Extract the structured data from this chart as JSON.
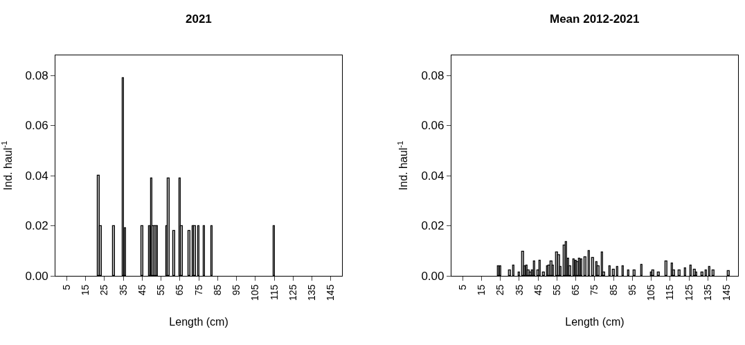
{
  "chart_data": [
    {
      "type": "bar",
      "title": "2021",
      "xlabel": "Length (cm)",
      "ylabel": "Ind. haul$^{-1}$",
      "color": "#a8a8a8",
      "x": [
        22,
        23,
        30,
        35,
        36,
        45,
        49,
        50,
        51,
        52,
        53,
        58,
        59,
        62,
        65,
        66,
        70,
        72,
        73,
        75,
        78,
        82,
        115
      ],
      "values": [
        0.04,
        0.02,
        0.02,
        0.079,
        0.019,
        0.02,
        0.02,
        0.039,
        0.02,
        0.02,
        0.02,
        0.02,
        0.039,
        0.018,
        0.039,
        0.02,
        0.018,
        0.02,
        0.02,
        0.02,
        0.02,
        0.02,
        0.02
      ],
      "xlim": [
        -1,
        151
      ],
      "xticks": [
        5,
        15,
        25,
        35,
        45,
        55,
        65,
        75,
        85,
        95,
        105,
        115,
        125,
        135,
        145
      ],
      "ylim": [
        0,
        0.088
      ],
      "yticks": [
        {
          "value": 0,
          "label": "0.00"
        },
        {
          "value": 0.02,
          "label": "0.02"
        },
        {
          "value": 0.04,
          "label": "0.04"
        },
        {
          "value": 0.06,
          "label": "0.06"
        },
        {
          "value": 0.08,
          "label": "0.08"
        }
      ]
    },
    {
      "type": "bar",
      "title": "Mean 2012-2021",
      "xlabel": "Length (cm)",
      "ylabel": "Ind. haul$^{-1}$",
      "color": "#a8a8a8",
      "x": [
        24,
        25,
        30,
        32,
        35,
        37,
        38,
        39,
        40,
        41,
        42,
        43,
        45,
        46,
        48,
        50,
        51,
        52,
        53,
        55,
        56,
        57,
        59,
        60,
        61,
        62,
        64,
        65,
        66,
        67,
        68,
        70,
        72,
        74,
        76,
        77,
        79,
        80,
        83,
        85,
        87,
        90,
        93,
        96,
        100,
        105,
        106,
        109,
        113,
        116,
        117,
        120,
        123,
        126,
        128,
        129,
        132,
        134,
        136,
        138,
        146
      ],
      "values": [
        0.0039,
        0.0039,
        0.0022,
        0.0041,
        0.0015,
        0.0097,
        0.0039,
        0.0041,
        0.0022,
        0.0015,
        0.0022,
        0.0057,
        0.0022,
        0.0062,
        0.0015,
        0.0039,
        0.0042,
        0.0057,
        0.0041,
        0.0093,
        0.0083,
        0.0036,
        0.0122,
        0.0134,
        0.007,
        0.004,
        0.0066,
        0.0062,
        0.0054,
        0.007,
        0.0066,
        0.0075,
        0.01,
        0.0073,
        0.0054,
        0.004,
        0.0093,
        0.0015,
        0.0039,
        0.0024,
        0.0036,
        0.004,
        0.0022,
        0.0022,
        0.0044,
        0.0015,
        0.0022,
        0.0015,
        0.0057,
        0.0049,
        0.0022,
        0.0022,
        0.0031,
        0.0041,
        0.0026,
        0.0015,
        0.0015,
        0.0022,
        0.0036,
        0.0022,
        0.0019
      ],
      "xlim": [
        -1,
        151
      ],
      "xticks": [
        5,
        15,
        25,
        35,
        45,
        55,
        65,
        75,
        85,
        95,
        105,
        115,
        125,
        135,
        145
      ],
      "ylim": [
        0,
        0.088
      ],
      "yticks": [
        {
          "value": 0,
          "label": "0.00"
        },
        {
          "value": 0.02,
          "label": "0.02"
        },
        {
          "value": 0.04,
          "label": "0.04"
        },
        {
          "value": 0.06,
          "label": "0.06"
        },
        {
          "value": 0.08,
          "label": "0.08"
        }
      ]
    }
  ]
}
